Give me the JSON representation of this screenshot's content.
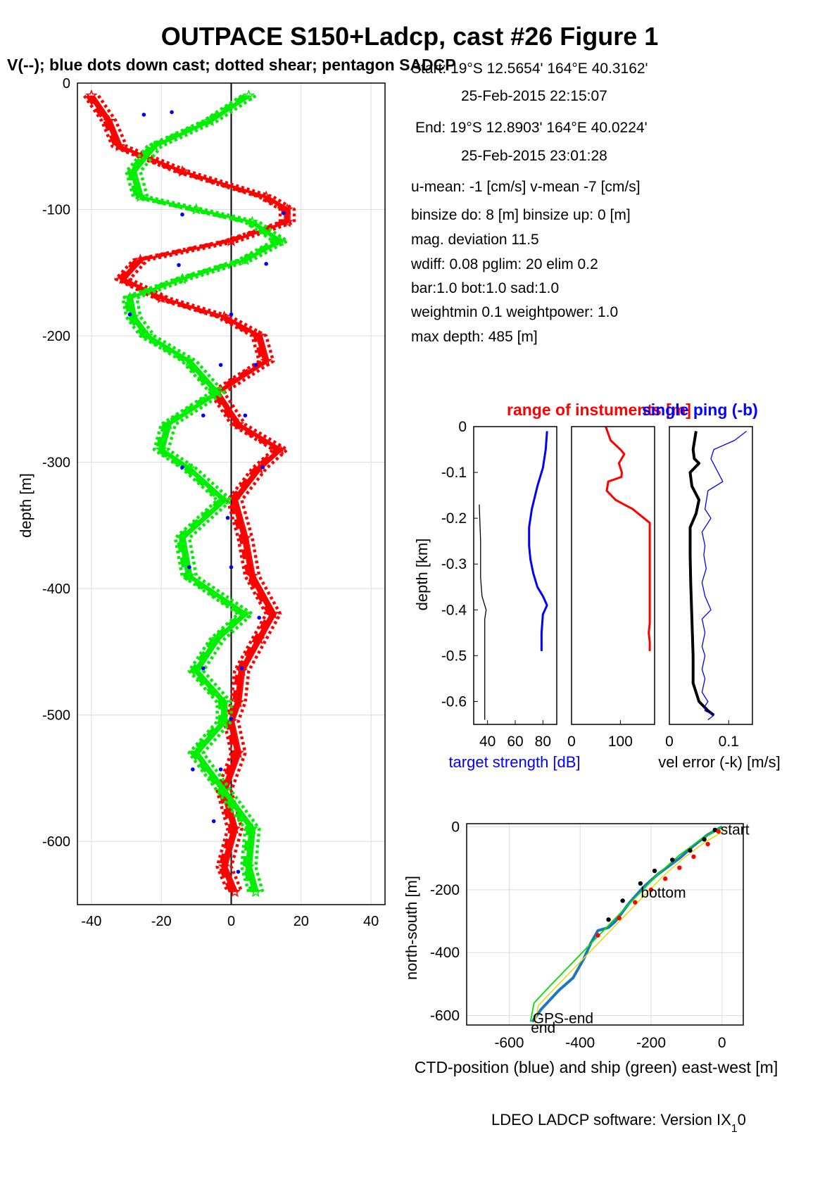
{
  "figure": {
    "title": "OUTPACE S150+Ladcp, cast #26  Figure 1",
    "subtitle": "V(--); blue dots down cast; dotted shear; pentagon SADCP",
    "footer": "LDEO LADCP software: Version IX",
    "footer_sub": "1",
    "footer_tail": "0"
  },
  "info": {
    "lines": [
      "Start:  19°S 12.5654'      164°E 40.3162'",
      "25-Feb-2015 22:15:07",
      "End:   19°S 12.8903'      164°E 40.0224'",
      "25-Feb-2015 23:01:28",
      "u-mean:  -1 [cm/s]    v-mean  -7 [cm/s]",
      "binsize do: 8 [m]  binsize up:  0 [m]",
      "mag. deviation 11.5",
      "wdiff: 0.08  pglim: 20  elim 0.2",
      "  bar:1.0 bot:1.0 sad:1.0",
      "weightmin 0.1  weightpower: 1.0",
      "max depth: 485 [m]"
    ]
  },
  "colors": {
    "u": "#ff0000",
    "v": "#00ee00",
    "dots": "#0000ff",
    "ctd": "#1f77c4",
    "ship": "#00dd00",
    "black": "#000000"
  },
  "chart_data": [
    {
      "type": "line",
      "title": "",
      "xlabel": "",
      "ylabel": "depth [m]",
      "xlim": [
        -44,
        44
      ],
      "ylim": [
        -650,
        0
      ],
      "xticks": [
        "-40",
        "-20",
        "0",
        "20",
        "40"
      ],
      "yticks": [
        "0",
        "-100",
        "-200",
        "-300",
        "-400",
        "-500",
        "-600"
      ],
      "grid": true,
      "depth": [
        -10,
        -30,
        -50,
        -70,
        -90,
        -100,
        -110,
        -125,
        -140,
        -155,
        -170,
        -185,
        -200,
        -220,
        -245,
        -270,
        -290,
        -305,
        -330,
        -360,
        -390,
        -420,
        -440,
        -465,
        -490,
        -505,
        -530,
        -560,
        -590,
        -620,
        -640
      ],
      "series": [
        {
          "name": "U",
          "color": "#ff0000",
          "values": [
            -40,
            -35,
            -32,
            -14,
            10,
            16,
            16,
            0,
            -26,
            -31,
            -20,
            -2,
            8,
            10,
            -4,
            2,
            14,
            8,
            1,
            4,
            6,
            12,
            8,
            3,
            2,
            0,
            2,
            -2,
            1,
            -2,
            1
          ]
        },
        {
          "name": "V",
          "color": "#00ee00",
          "values": [
            5,
            -6,
            -22,
            -28,
            -26,
            -10,
            6,
            14,
            4,
            -14,
            -29,
            -28,
            -24,
            -12,
            -4,
            -18,
            -20,
            -12,
            -2,
            -14,
            -12,
            4,
            -4,
            -10,
            -2,
            -2,
            -10,
            -2,
            6,
            5,
            7
          ]
        }
      ],
      "blue_dots": [
        {
          "x": -25,
          "y": -25
        },
        {
          "x": -17,
          "y": -23
        },
        {
          "x": -14,
          "y": -104
        },
        {
          "x": 15,
          "y": -103
        },
        {
          "x": 10,
          "y": -143
        },
        {
          "x": -15,
          "y": -144
        },
        {
          "x": -29,
          "y": -183
        },
        {
          "x": 0,
          "y": -183
        },
        {
          "x": -3,
          "y": -223
        },
        {
          "x": 7,
          "y": -223
        },
        {
          "x": -8,
          "y": -263
        },
        {
          "x": 4,
          "y": -263
        },
        {
          "x": -14,
          "y": -304
        },
        {
          "x": 9,
          "y": -304
        },
        {
          "x": -1,
          "y": -344
        },
        {
          "x": -12,
          "y": -383
        },
        {
          "x": 0,
          "y": -383
        },
        {
          "x": 8,
          "y": -423
        },
        {
          "x": -8,
          "y": -463
        },
        {
          "x": 3,
          "y": -463
        },
        {
          "x": 0,
          "y": -503
        },
        {
          "x": -11,
          "y": -543
        },
        {
          "x": -3,
          "y": -543
        },
        {
          "x": -5,
          "y": -584
        },
        {
          "x": 2,
          "y": -624
        }
      ]
    },
    {
      "type": "line",
      "title": "range of instuments [m]",
      "ylabel": "depth [km]",
      "xlabel": "target strength [dB]",
      "ylim": [
        -0.65,
        0
      ],
      "yticks": [
        "0",
        "-0.1",
        "-0.2",
        "-0.3",
        "-0.4",
        "-0.5",
        "-0.6"
      ],
      "panels": [
        {
          "xlim": [
            30,
            90
          ],
          "xticks": [
            "40",
            "60",
            "80"
          ],
          "series": [
            {
              "name": "target strength",
              "color": "#0000ff",
              "x": [
                83,
                82,
                80,
                76,
                72,
                70,
                70,
                71,
                73,
                76,
                80,
                83,
                80,
                79,
                79
              ],
              "y": [
                -0.01,
                -0.05,
                -0.09,
                -0.13,
                -0.18,
                -0.22,
                -0.26,
                -0.29,
                -0.32,
                -0.35,
                -0.37,
                -0.39,
                -0.41,
                -0.45,
                -0.49
              ]
            },
            {
              "color": "#000000",
              "x": [
                34,
                35,
                35,
                36,
                38,
                39,
                38,
                38,
                38,
                38,
                38
              ],
              "y": [
                -0.17,
                -0.25,
                -0.33,
                -0.37,
                -0.39,
                -0.4,
                -0.42,
                -0.46,
                -0.52,
                -0.58,
                -0.64
              ]
            }
          ]
        },
        {
          "xlim": [
            0,
            170
          ],
          "xticks": [
            "0",
            "100"
          ],
          "series": [
            {
              "name": "range",
              "color": "#ff0000",
              "x": [
                70,
                80,
                100,
                108,
                97,
                103,
                102,
                75,
                72,
                90,
                125,
                160,
                160,
                160,
                158,
                160,
                160
              ],
              "y": [
                -0.0,
                -0.03,
                -0.05,
                -0.06,
                -0.08,
                -0.1,
                -0.11,
                -0.12,
                -0.14,
                -0.16,
                -0.18,
                -0.21,
                -0.3,
                -0.43,
                -0.45,
                -0.47,
                -0.49
              ]
            }
          ]
        },
        {
          "xlim": [
            0,
            0.14
          ],
          "xticks": [
            "0",
            "0.1"
          ],
          "series": [
            {
              "name": "vel error",
              "color": "#000000",
              "x": [
                0.045,
                0.04,
                0.042,
                0.05,
                0.035,
                0.038,
                0.05,
                0.045,
                0.035,
                0.035,
                0.036,
                0.038,
                0.04,
                0.04,
                0.05,
                0.065,
                0.075
              ],
              "y": [
                -0.01,
                -0.05,
                -0.07,
                -0.08,
                -0.1,
                -0.13,
                -0.16,
                -0.19,
                -0.22,
                -0.28,
                -0.34,
                -0.42,
                -0.5,
                -0.56,
                -0.6,
                -0.62,
                -0.63
              ]
            },
            {
              "name": "single ping",
              "color": "#0000ff",
              "x": [
                0.13,
                0.11,
                0.075,
                0.07,
                0.09,
                0.065,
                0.06,
                0.07,
                0.055,
                0.06,
                0.058,
                0.062,
                0.055,
                0.06,
                0.07,
                0.055,
                0.06,
                0.055,
                0.06,
                0.055,
                0.06,
                0.055,
                0.065,
                0.06,
                0.06,
                0.075,
                0.065
              ],
              "y": [
                -0.01,
                -0.03,
                -0.05,
                -0.07,
                -0.12,
                -0.14,
                -0.18,
                -0.2,
                -0.23,
                -0.26,
                -0.28,
                -0.31,
                -0.34,
                -0.37,
                -0.4,
                -0.42,
                -0.45,
                -0.48,
                -0.5,
                -0.53,
                -0.55,
                -0.58,
                -0.6,
                -0.61,
                -0.62,
                -0.63,
                -0.64
              ]
            }
          ]
        }
      ],
      "right_labels": [
        "single ping (-b)",
        "vel error (-k) [m/s]"
      ]
    },
    {
      "type": "line",
      "xlabel": "CTD-position (blue) and ship (green) east-west [m]",
      "ylabel": "north-south [m]",
      "xlim": [
        -720,
        60
      ],
      "ylim": [
        -630,
        10
      ],
      "xticks": [
        "-600",
        "-400",
        "-200",
        "0"
      ],
      "yticks": [
        "0",
        "-200",
        "-400",
        "-600"
      ],
      "grid": true,
      "ctd": {
        "x": [
          0,
          -40,
          -80,
          -120,
          -180,
          -220,
          -260,
          -300,
          -320,
          -350,
          -370,
          -390,
          -420,
          -460,
          -510,
          -535
        ],
        "y": [
          0,
          -25,
          -60,
          -100,
          -150,
          -190,
          -240,
          -300,
          -320,
          -330,
          -370,
          -420,
          -480,
          -520,
          -580,
          -620
        ]
      },
      "ship": {
        "x": [
          0,
          -60,
          -120,
          -180,
          -240,
          -300,
          -360,
          -420,
          -480,
          -530,
          -540
        ],
        "y": [
          0,
          -40,
          -90,
          -150,
          -220,
          -290,
          -360,
          -430,
          -500,
          -560,
          -620
        ]
      },
      "dots": [
        {
          "x": -20,
          "y": -10,
          "c": "#000000"
        },
        {
          "x": -50,
          "y": -40,
          "c": "#000000"
        },
        {
          "x": -90,
          "y": -75,
          "c": "#000000"
        },
        {
          "x": -140,
          "y": -105,
          "c": "#000000"
        },
        {
          "x": -190,
          "y": -140,
          "c": "#000000"
        },
        {
          "x": -230,
          "y": -180,
          "c": "#000000"
        },
        {
          "x": -280,
          "y": -235,
          "c": "#000000"
        },
        {
          "x": -320,
          "y": -295,
          "c": "#000000"
        },
        {
          "x": -10,
          "y": -15,
          "c": "#ff0000"
        },
        {
          "x": -40,
          "y": -55,
          "c": "#ff0000"
        },
        {
          "x": -80,
          "y": -95,
          "c": "#ff0000"
        },
        {
          "x": -120,
          "y": -130,
          "c": "#ff0000"
        },
        {
          "x": -160,
          "y": -165,
          "c": "#ff0000"
        },
        {
          "x": -200,
          "y": -200,
          "c": "#ff0000"
        },
        {
          "x": -245,
          "y": -240,
          "c": "#ff0000"
        },
        {
          "x": -290,
          "y": -290,
          "c": "#ff0000"
        },
        {
          "x": -350,
          "y": -345,
          "c": "#ff0000"
        }
      ],
      "labels": [
        {
          "text": "start",
          "x": 0,
          "y": 0
        },
        {
          "text": "bottom",
          "x": -225,
          "y": -200
        },
        {
          "text": "GPS-end",
          "x": -530,
          "y": -600
        },
        {
          "text": "end",
          "x": -535,
          "y": -630
        }
      ]
    }
  ]
}
